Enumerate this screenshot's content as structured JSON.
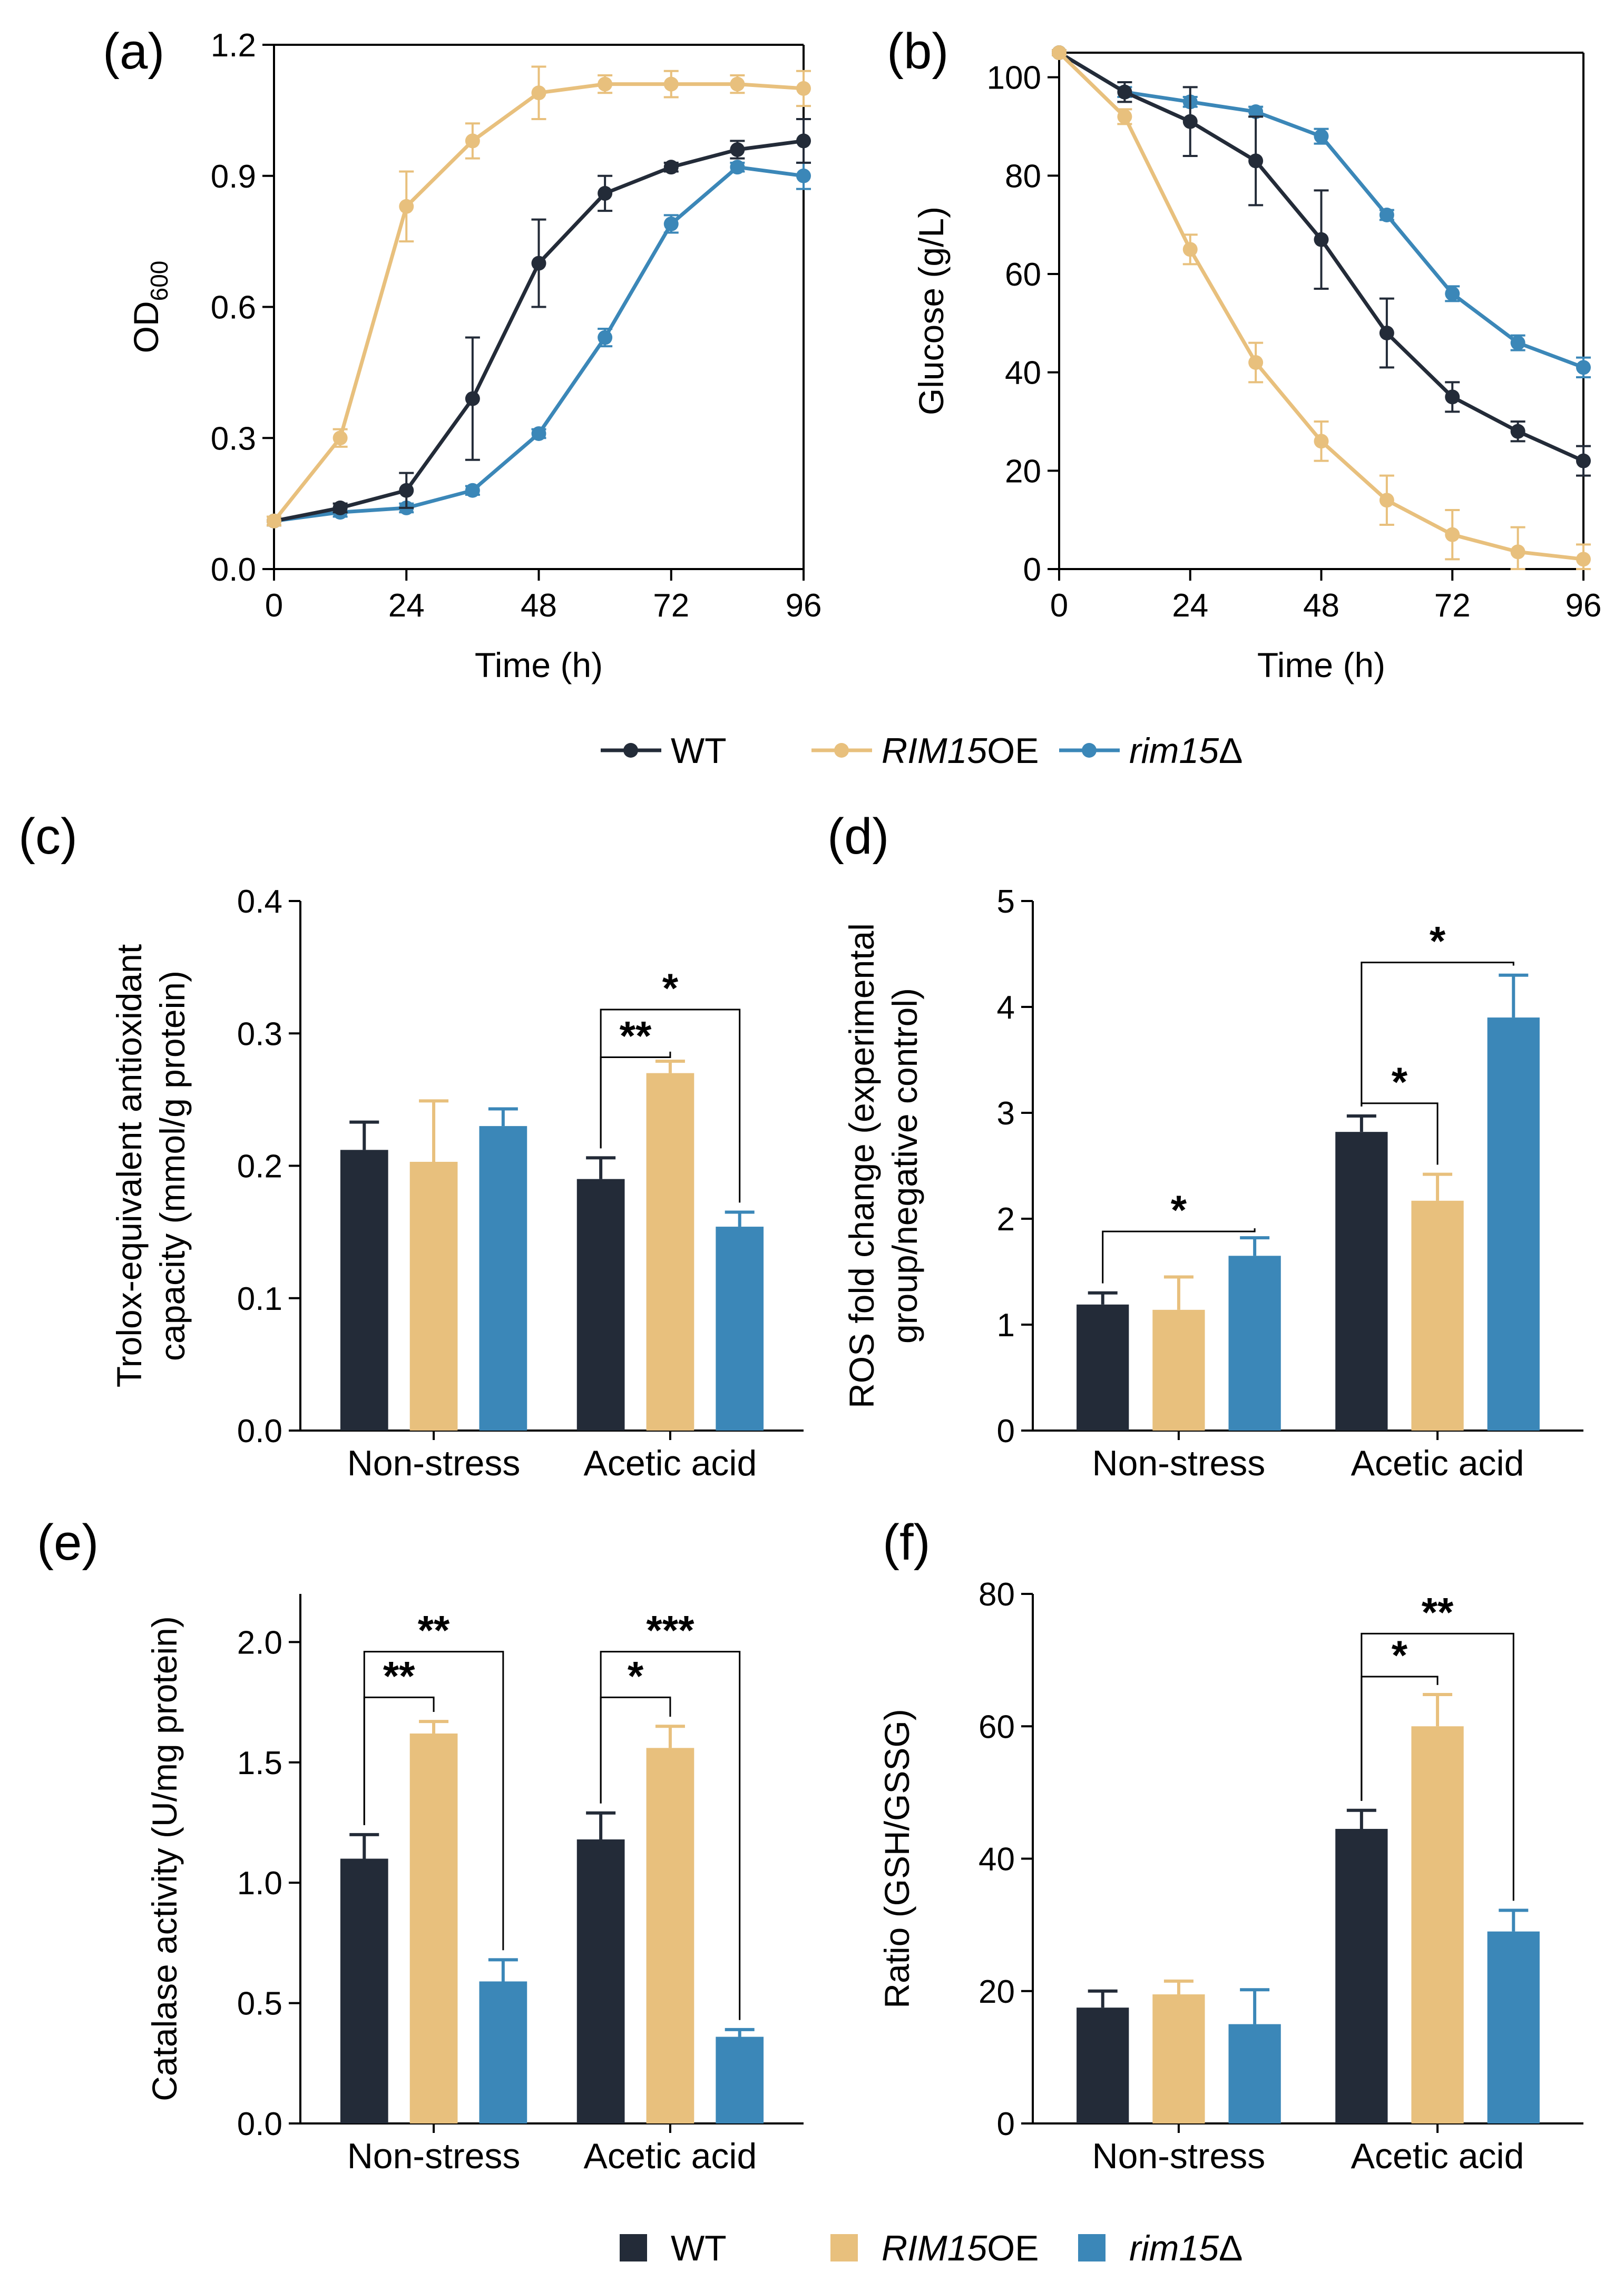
{
  "colors": {
    "WT": "#232b38",
    "RIM15OE": "#e8c07d",
    "rim15d": "#3b87b8",
    "axis": "#000000"
  },
  "legend_line": {
    "items": [
      {
        "key": "WT",
        "label": "WT",
        "italic_part": "",
        "normal_part": "WT"
      },
      {
        "key": "RIM15OE",
        "label": "RIM15OE",
        "italic_part": "RIM15",
        "normal_part": "OE"
      },
      {
        "key": "rim15d",
        "label": "rim15Δ",
        "italic_part": "rim15",
        "normal_part": "Δ"
      }
    ]
  },
  "legend_bar": {
    "items": [
      {
        "key": "WT",
        "label": "WT",
        "italic_part": "",
        "normal_part": "WT"
      },
      {
        "key": "RIM15OE",
        "label": "RIM15OE",
        "italic_part": "RIM15",
        "normal_part": "OE"
      },
      {
        "key": "rim15d",
        "label": "rim15Δ",
        "italic_part": "rim15",
        "normal_part": "Δ"
      }
    ]
  },
  "chart_data": [
    {
      "id": "a",
      "panel_label": "(a)",
      "type": "line",
      "xlabel": "Time (h)",
      "ylabel": "OD600",
      "ylabel_main": "OD",
      "ylabel_sub": "600",
      "xlim": [
        0,
        96
      ],
      "ylim": [
        0,
        1.2
      ],
      "xticks": [
        0,
        24,
        48,
        72,
        96
      ],
      "xtick_labels": [
        "0",
        "24",
        "48",
        "72",
        "96"
      ],
      "yticks": [
        0,
        0.3,
        0.6,
        0.9,
        1.2
      ],
      "ytick_labels": [
        "0.0",
        "0.3",
        "0.6",
        "0.9",
        "1.2"
      ],
      "x": [
        0,
        12,
        24,
        36,
        48,
        60,
        72,
        84,
        96
      ],
      "series": [
        {
          "key": "WT",
          "name": "WT",
          "values": [
            0.11,
            0.14,
            0.18,
            0.39,
            0.7,
            0.86,
            0.92,
            0.96,
            0.98
          ],
          "errors": [
            0.01,
            0.01,
            0.04,
            0.14,
            0.1,
            0.04,
            0.01,
            0.02,
            0.05
          ]
        },
        {
          "key": "RIM15OE",
          "name": "RIM15OE",
          "values": [
            0.11,
            0.3,
            0.83,
            0.98,
            1.09,
            1.11,
            1.11,
            1.11,
            1.1
          ],
          "errors": [
            0.01,
            0.02,
            0.08,
            0.04,
            0.06,
            0.02,
            0.03,
            0.02,
            0.04
          ]
        },
        {
          "key": "rim15d",
          "name": "rim15Δ",
          "values": [
            0.11,
            0.13,
            0.14,
            0.18,
            0.31,
            0.53,
            0.79,
            0.92,
            0.9
          ],
          "errors": [
            0.01,
            0.01,
            0.01,
            0.01,
            0.01,
            0.02,
            0.02,
            0.01,
            0.03
          ]
        }
      ]
    },
    {
      "id": "b",
      "panel_label": "(b)",
      "type": "line",
      "xlabel": "Time (h)",
      "ylabel": "Glucose (g/L)",
      "xlim": [
        0,
        96
      ],
      "ylim": [
        0,
        105
      ],
      "xticks": [
        0,
        24,
        48,
        72,
        96
      ],
      "xtick_labels": [
        "0",
        "24",
        "48",
        "72",
        "96"
      ],
      "yticks": [
        0,
        20,
        40,
        60,
        80,
        100
      ],
      "ytick_labels": [
        "0",
        "20",
        "40",
        "60",
        "80",
        "100"
      ],
      "x": [
        0,
        12,
        24,
        36,
        48,
        60,
        72,
        84,
        96
      ],
      "series": [
        {
          "key": "WT",
          "name": "WT",
          "values": [
            105,
            97,
            91,
            83,
            67,
            48,
            35,
            28,
            22
          ],
          "errors": [
            0.5,
            2,
            7,
            9,
            10,
            7,
            3,
            2,
            3
          ]
        },
        {
          "key": "RIM15OE",
          "name": "RIM15OE",
          "values": [
            105,
            92,
            65,
            42,
            26,
            14,
            7,
            3.5,
            2
          ],
          "errors": [
            0.5,
            1.5,
            3,
            4,
            4,
            5,
            5,
            5,
            3
          ]
        },
        {
          "key": "rim15d",
          "name": "rim15Δ",
          "values": [
            105,
            97,
            95,
            93,
            88,
            72,
            56,
            46,
            41
          ],
          "errors": [
            0.5,
            1,
            1,
            1,
            1.5,
            1,
            1.5,
            1.5,
            2
          ]
        }
      ]
    },
    {
      "id": "c",
      "panel_label": "(c)",
      "type": "bar",
      "ylabel_lines": [
        "Trolox-equivalent  antioxidant",
        "capacity (mmol/g protein)"
      ],
      "categories": [
        "Non-stress",
        "Acetic acid"
      ],
      "ylim": [
        0,
        0.4
      ],
      "yticks": [
        0,
        0.1,
        0.2,
        0.3,
        0.4
      ],
      "ytick_labels": [
        "0.0",
        "0.1",
        "0.2",
        "0.3",
        "0.4"
      ],
      "series": [
        {
          "key": "WT",
          "name": "WT",
          "values": [
            0.212,
            0.19
          ],
          "errors": [
            0.021,
            0.016
          ]
        },
        {
          "key": "RIM15OE",
          "name": "RIM15OE",
          "values": [
            0.203,
            0.27
          ],
          "errors": [
            0.046,
            0.009
          ]
        },
        {
          "key": "rim15d",
          "name": "rim15Δ",
          "values": [
            0.23,
            0.154
          ],
          "errors": [
            0.013,
            0.011
          ]
        }
      ],
      "significance": [
        {
          "category": 1,
          "from": 0,
          "to": 1,
          "stars": "**",
          "level": 0.282
        },
        {
          "category": 1,
          "from": 0,
          "to": 2,
          "stars": "*",
          "level": 0.318
        }
      ]
    },
    {
      "id": "d",
      "panel_label": "(d)",
      "type": "bar",
      "ylabel_lines": [
        "ROS fold change (experimental",
        "group/negative control)"
      ],
      "categories": [
        "Non-stress",
        "Acetic acid"
      ],
      "ylim": [
        0,
        5
      ],
      "yticks": [
        0,
        1,
        2,
        3,
        4,
        5
      ],
      "ytick_labels": [
        "0",
        "1",
        "2",
        "3",
        "4",
        "5"
      ],
      "series": [
        {
          "key": "WT",
          "name": "WT",
          "values": [
            1.19,
            2.82
          ],
          "errors": [
            0.11,
            0.15
          ]
        },
        {
          "key": "RIM15OE",
          "name": "RIM15OE",
          "values": [
            1.14,
            2.17
          ],
          "errors": [
            0.31,
            0.25
          ]
        },
        {
          "key": "rim15d",
          "name": "rim15Δ",
          "values": [
            1.65,
            3.9
          ],
          "errors": [
            0.17,
            0.4
          ]
        }
      ],
      "significance": [
        {
          "category": 0,
          "from": 0,
          "to": 2,
          "stars": "*",
          "level": 1.88
        },
        {
          "category": 1,
          "from": 0,
          "to": 1,
          "stars": "*",
          "level": 3.09
        },
        {
          "category": 1,
          "from": 0,
          "to": 2,
          "stars": "*",
          "level": 4.42
        }
      ]
    },
    {
      "id": "e",
      "panel_label": "(e)",
      "type": "bar",
      "ylabel_lines": [
        "Catalase activity (U/mg protein)"
      ],
      "categories": [
        "Non-stress",
        "Acetic acid"
      ],
      "ylim": [
        0,
        2.2
      ],
      "yticks": [
        0,
        0.5,
        1.0,
        1.5,
        2.0
      ],
      "ytick_labels": [
        "0.0",
        "0.5",
        "1.0",
        "1.5",
        "2.0"
      ],
      "series": [
        {
          "key": "WT",
          "name": "WT",
          "values": [
            1.1,
            1.18
          ],
          "errors": [
            0.1,
            0.11
          ]
        },
        {
          "key": "RIM15OE",
          "name": "RIM15OE",
          "values": [
            1.62,
            1.56
          ],
          "errors": [
            0.05,
            0.09
          ]
        },
        {
          "key": "rim15d",
          "name": "rim15Δ",
          "values": [
            0.59,
            0.36
          ],
          "errors": [
            0.09,
            0.03
          ]
        }
      ],
      "significance": [
        {
          "category": 0,
          "from": 0,
          "to": 1,
          "stars": "**",
          "level": 1.77
        },
        {
          "category": 0,
          "from": 0,
          "to": 2,
          "stars": "**",
          "level": 1.96
        },
        {
          "category": 1,
          "from": 0,
          "to": 1,
          "stars": "*",
          "level": 1.77
        },
        {
          "category": 1,
          "from": 0,
          "to": 2,
          "stars": "***",
          "level": 1.96
        }
      ]
    },
    {
      "id": "f",
      "panel_label": "(f)",
      "type": "bar",
      "ylabel_lines": [
        "Ratio (GSH/GSSG)"
      ],
      "categories": [
        "Non-stress",
        "Acetic acid"
      ],
      "ylim": [
        0,
        80
      ],
      "yticks": [
        0,
        20,
        40,
        60,
        80
      ],
      "ytick_labels": [
        "0",
        "20",
        "40",
        "60",
        "80"
      ],
      "series": [
        {
          "key": "WT",
          "name": "WT",
          "values": [
            17.5,
            44.5
          ],
          "errors": [
            2.5,
            2.8
          ]
        },
        {
          "key": "RIM15OE",
          "name": "RIM15OE",
          "values": [
            19.5,
            60.0
          ],
          "errors": [
            2.0,
            4.8
          ]
        },
        {
          "key": "rim15d",
          "name": "rim15Δ",
          "values": [
            15.0,
            29.0
          ],
          "errors": [
            5.2,
            3.2
          ]
        }
      ],
      "significance": [
        {
          "category": 1,
          "from": 0,
          "to": 1,
          "stars": "*",
          "level": 67.5
        },
        {
          "category": 1,
          "from": 0,
          "to": 2,
          "stars": "**",
          "level": 74
        }
      ]
    }
  ]
}
